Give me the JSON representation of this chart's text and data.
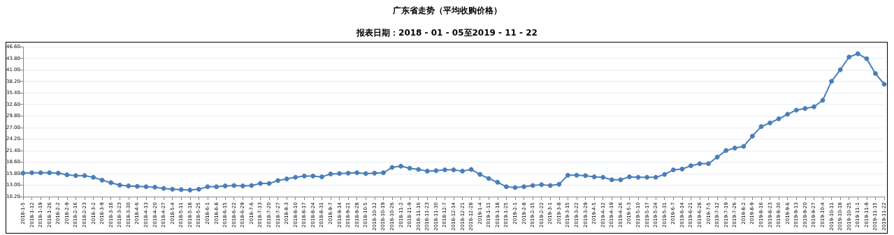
{
  "chart_data": {
    "type": "line",
    "title": "广东省走势（平均收购价格）",
    "subtitle": "报表日期：2018 - 01 - 05至2019 - 11 - 22",
    "categories": [
      "2018-1-5",
      "2018-1-12",
      "2018-1-19",
      "2018-1-26",
      "2018-2-2",
      "2018-2-9",
      "2018-2-16",
      "2018-2-23",
      "2018-3-2",
      "2018-3-9",
      "2018-3-16",
      "2018-3-23",
      "2018-3-30",
      "2018-4-6",
      "2018-4-13",
      "2018-4-20",
      "2018-4-27",
      "2018-5-4",
      "2018-5-11",
      "2018-5-18",
      "2018-5-25",
      "2018-6-1",
      "2018-6-8",
      "2018-6-15",
      "2018-6-22",
      "2018-6-29",
      "2018-7-6",
      "2018-7-13",
      "2018-7-20",
      "2018-7-27",
      "2018-8-3",
      "2018-8-10",
      "2018-8-17",
      "2018-8-24",
      "2018-8-31",
      "2018-9-7",
      "2018-9-14",
      "2018-9-21",
      "2018-9-28",
      "2018-10-5",
      "2018-10-12",
      "2018-10-19",
      "2018-10-26",
      "2018-11-2",
      "2018-11-9",
      "2018-11-16",
      "2018-11-23",
      "2018-11-30",
      "2018-12-7",
      "2018-12-14",
      "2018-12-21",
      "2018-12-28",
      "2019-1-4",
      "2019-1-11",
      "2019-1-18",
      "2019-1-25",
      "2019-2-1",
      "2019-2-8",
      "2019-2-15",
      "2019-2-22",
      "2019-3-1",
      "2019-3-8",
      "2019-3-15",
      "2019-3-22",
      "2019-3-29",
      "2019-4-5",
      "2019-4-12",
      "2019-4-19",
      "2019-4-26",
      "2019-5-3",
      "2019-5-10",
      "2019-5-17",
      "2019-5-24",
      "2019-5-31",
      "2019-6-7",
      "2019-6-14",
      "2019-6-21",
      "2019-6-28",
      "2019-7-5",
      "2019-7-12",
      "2019-7-19",
      "2019-7-26",
      "2019-8-2",
      "2019-8-9",
      "2019-8-16",
      "2019-8-23",
      "2019-8-30",
      "2019-9-6",
      "2019-9-13",
      "2019-9-20",
      "2019-9-27",
      "2019-10-4",
      "2019-10-11",
      "2019-10-18",
      "2019-10-25",
      "2019-11-1",
      "2019-11-8",
      "2019-11-15",
      "2019-11-22"
    ],
    "series": [
      {
        "color": "#4a7ebb",
        "values": [
          15.9,
          16.0,
          16.0,
          16.0,
          15.9,
          15.5,
          15.3,
          15.3,
          14.9,
          14.2,
          13.6,
          13.0,
          12.8,
          12.7,
          12.6,
          12.5,
          12.2,
          12.0,
          11.9,
          11.8,
          12.0,
          12.6,
          12.6,
          12.8,
          12.9,
          12.8,
          12.9,
          13.4,
          13.4,
          14.1,
          14.5,
          14.9,
          15.2,
          15.2,
          15.0,
          15.7,
          15.8,
          15.9,
          16.0,
          15.8,
          15.9,
          16.0,
          17.3,
          17.6,
          17.1,
          16.8,
          16.4,
          16.5,
          16.7,
          16.7,
          16.4,
          16.8,
          15.6,
          14.6,
          13.7,
          12.6,
          12.4,
          12.6,
          12.9,
          13.1,
          12.9,
          13.2,
          15.4,
          15.4,
          15.3,
          15.0,
          14.9,
          14.3,
          14.3,
          15.0,
          14.9,
          14.9,
          14.9,
          15.6,
          16.7,
          16.9,
          17.7,
          18.2,
          18.2,
          19.8,
          21.4,
          22.0,
          22.4,
          24.9,
          27.2,
          28.1,
          29.1,
          30.2,
          31.2,
          31.6,
          32.0,
          33.6,
          38.2,
          41.0,
          44.1,
          44.9,
          43.7,
          40.1,
          37.5
        ]
      }
    ],
    "ylim": [
      10.2,
      46.6
    ],
    "yticks": [
      {
        "value": 10.2,
        "label": "10.20"
      },
      {
        "value": 13,
        "label": "13.00"
      },
      {
        "value": 15.8,
        "label": "15.80"
      },
      {
        "value": 18.6,
        "label": "18.60"
      },
      {
        "value": 21.4,
        "label": "21.40"
      },
      {
        "value": 24.2,
        "label": "24.20"
      },
      {
        "value": 27,
        "label": "27.00"
      },
      {
        "value": 29.8,
        "label": "29.80"
      },
      {
        "value": 32.6,
        "label": "32.60"
      },
      {
        "value": 35.4,
        "label": "35.40"
      },
      {
        "value": 38.2,
        "label": "38.20"
      },
      {
        "value": 41,
        "label": "41.00"
      },
      {
        "value": 43.8,
        "label": "43.80"
      },
      {
        "value": 46.6,
        "label": "46.60"
      }
    ],
    "grid": "y",
    "marker": "circle",
    "line_style": "solid"
  }
}
